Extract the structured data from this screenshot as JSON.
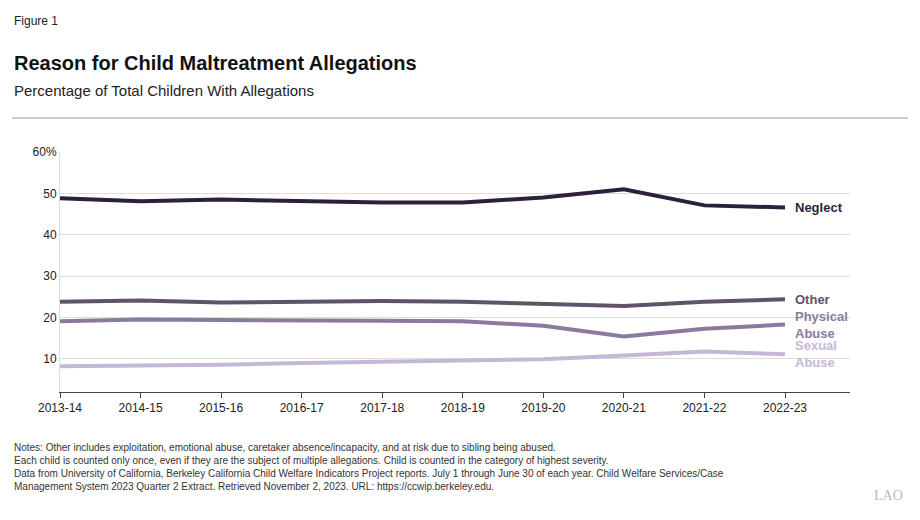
{
  "chart_data": {
    "type": "line",
    "figure_label": "Figure 1",
    "title": "Reason for Child Maltreatment Allegations",
    "subtitle": "Percentage of Total Children With Allegations",
    "categories": [
      "2013-14",
      "2014-15",
      "2015-16",
      "2016-17",
      "2017-18",
      "2018-19",
      "2019-20",
      "2020-21",
      "2021-22",
      "2022-23"
    ],
    "series": [
      {
        "name": "Neglect",
        "color": "#2e1f3a",
        "values": [
          48.8,
          48.1,
          48.5,
          48.1,
          47.8,
          47.8,
          49.0,
          51.0,
          47.1,
          46.6
        ]
      },
      {
        "name": "Other",
        "color": "#5f5468",
        "values": [
          23.8,
          24.1,
          23.6,
          23.7,
          24.0,
          23.8,
          23.4,
          22.8,
          23.8,
          24.4
        ]
      },
      {
        "name": "Physical Abuse",
        "color": "#8b7a9d",
        "values": [
          19.1,
          19.5,
          19.4,
          19.4,
          19.2,
          19.1,
          18.0,
          15.4,
          17.3,
          18.3
        ]
      },
      {
        "name": "Sexual Abuse",
        "color": "#c5b8d6",
        "values": [
          8.2,
          8.3,
          8.6,
          9.0,
          9.3,
          9.6,
          9.9,
          10.8,
          11.8,
          11.1
        ]
      }
    ],
    "ylim": [
      2,
      60
    ],
    "yticks": [
      10,
      20,
      30,
      40,
      50,
      {
        "value": 60,
        "label": "60%"
      }
    ],
    "grid": true,
    "notes": [
      "Notes: Other includes exploitation, emotional abuse, caretaker absence/incapacity, and at risk due to sibling being abused.",
      "Each child is counted only once, even if they are the subject of multiple allegations. Child is counted in the category of highest severity.",
      "Data from University of California, Berkeley California Child Welfare Indicators Project reports. July 1 through June 30 of each year. Child Welfare Services/Case",
      "Management System 2023 Quarter 2 Extract. Retrieved November 2, 2023. URL: https://ccwip.berkeley.edu."
    ],
    "credit": "LAO"
  }
}
